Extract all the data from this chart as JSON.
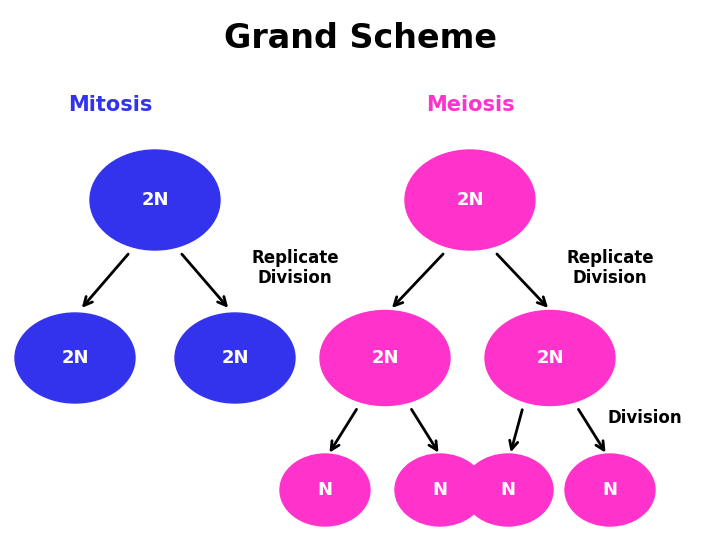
{
  "title": "Grand Scheme",
  "title_fontsize": 24,
  "title_fontweight": "bold",
  "title_color": "#000000",
  "background_color": "#ffffff",
  "mitosis_label": "Mitosis",
  "meiosis_label": "Meiosis",
  "mitosis_color": "#3333ee",
  "meiosis_color": "#ff33cc",
  "text_color_white": "#ffffff",
  "text_color_black": "#000000",
  "label_2N": "2N",
  "label_N": "N",
  "replicate_division_text": "Replicate\nDivision",
  "division_text": "Division",
  "circle_label_fontsize": 13,
  "section_label_fontsize": 15,
  "annotation_fontsize": 12
}
